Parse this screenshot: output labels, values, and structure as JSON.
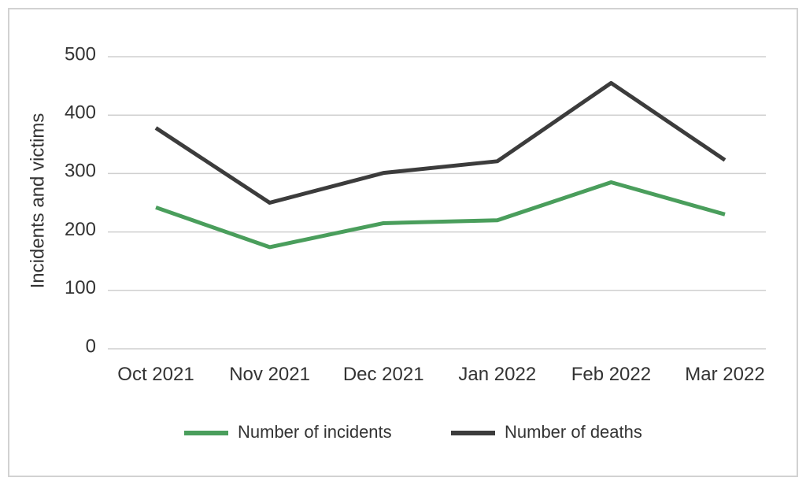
{
  "chart_data": {
    "type": "line",
    "title": "",
    "xlabel": "",
    "ylabel": "Incidents and victims",
    "categories": [
      "Oct 2021",
      "Nov 2021",
      "Dec 2021",
      "Jan 2022",
      "Feb 2022",
      "Mar 2022"
    ],
    "ylim": [
      0,
      500
    ],
    "yticks": [
      0,
      100,
      200,
      300,
      400,
      500
    ],
    "grid": true,
    "legend_position": "bottom",
    "series": [
      {
        "name": "Number of incidents",
        "color": "#4a9e5c",
        "values": [
          242,
          174,
          215,
          220,
          285,
          230
        ]
      },
      {
        "name": "Number of deaths",
        "color": "#3c3c3c",
        "values": [
          378,
          250,
          301,
          321,
          455,
          323
        ]
      }
    ]
  }
}
